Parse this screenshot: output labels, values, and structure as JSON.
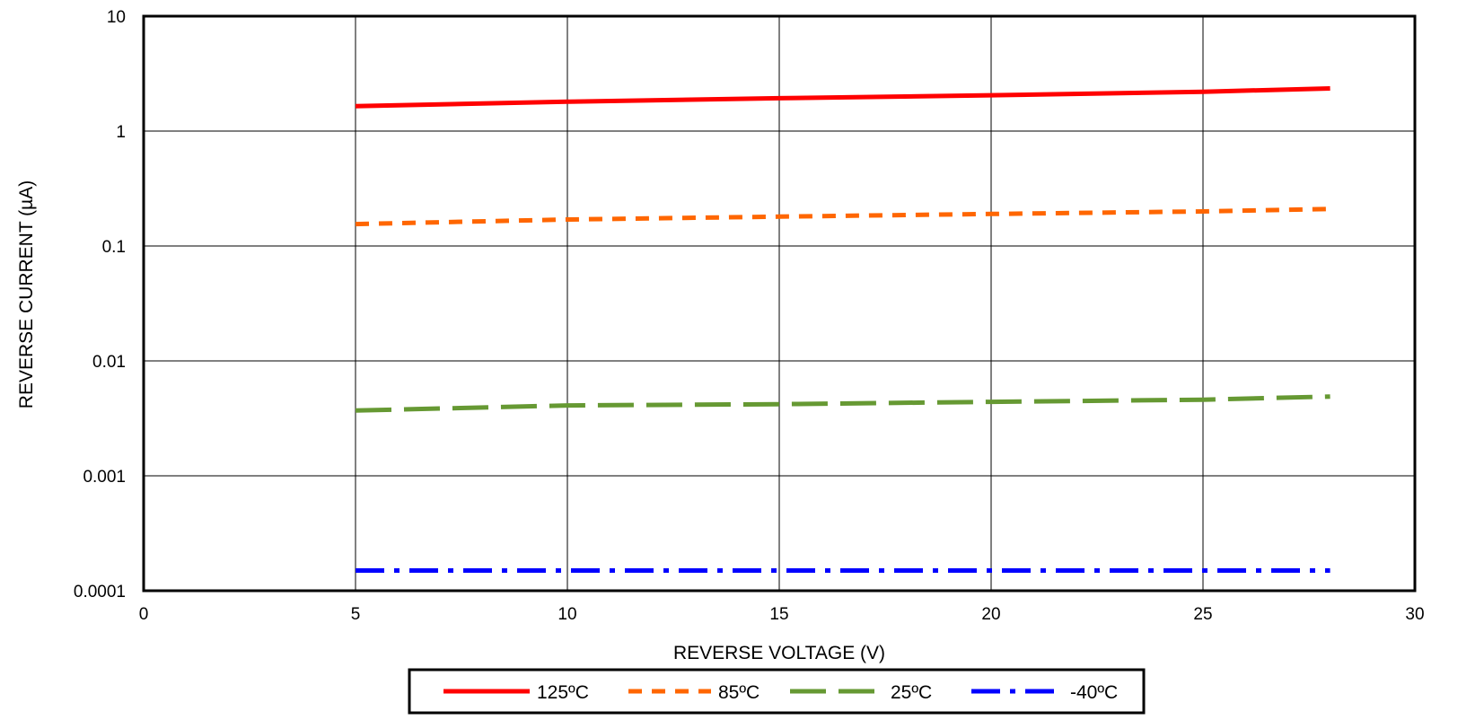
{
  "chart_data": {
    "type": "line",
    "title": "",
    "xlabel": "REVERSE VOLTAGE (V)",
    "ylabel": "REVERSE CURRENT (µA)",
    "xlim": [
      0,
      30
    ],
    "ylim": [
      0.0001,
      10
    ],
    "y_scale": "log",
    "grid": true,
    "legend_position": "bottom",
    "x_ticks": [
      "0",
      "5",
      "10",
      "15",
      "20",
      "25",
      "30"
    ],
    "y_ticks": [
      "10",
      "1",
      "0.1",
      "0.01",
      "0.001",
      "0.0001"
    ],
    "x": [
      5,
      10,
      15,
      20,
      25,
      28
    ],
    "series": [
      {
        "name": "125ºC",
        "values": [
          1.65,
          1.8,
          1.93,
          2.05,
          2.2,
          2.35
        ],
        "color": "#ff0000",
        "line_style": "solid"
      },
      {
        "name": "85ºC",
        "values": [
          0.155,
          0.17,
          0.18,
          0.19,
          0.2,
          0.21
        ],
        "color": "#ff6600",
        "line_style": "dashed"
      },
      {
        "name": "25ºC",
        "values": [
          0.0037,
          0.0041,
          0.0042,
          0.0044,
          0.0046,
          0.0049
        ],
        "color": "#669933",
        "line_style": "long-dash"
      },
      {
        "name": "-40ºC",
        "values": [
          0.00015,
          0.00015,
          0.00015,
          0.00015,
          0.00015,
          0.00015
        ],
        "color": "#0000ff",
        "line_style": "dash-dot"
      }
    ]
  }
}
